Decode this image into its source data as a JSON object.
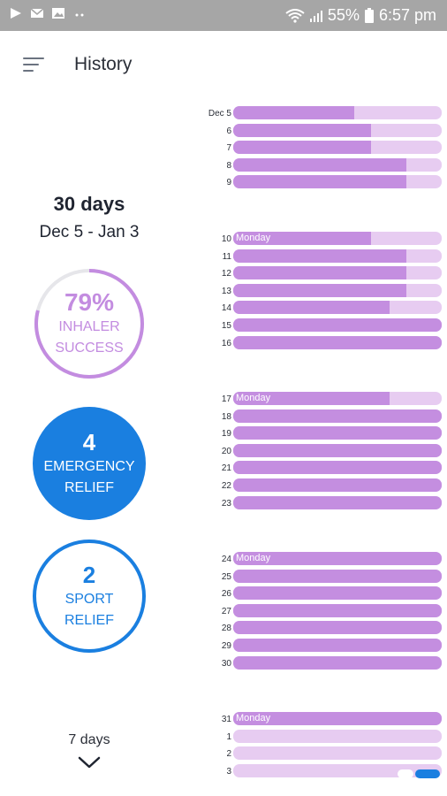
{
  "status": {
    "battery": "55%",
    "time": "6:57 pm"
  },
  "header": {
    "title": "History"
  },
  "summary": {
    "days_title": "30 days",
    "date_range": "Dec 5 - Jan 3",
    "inhaler": {
      "value": "79%",
      "line1": "INHALER",
      "line2": "SUCCESS",
      "fraction": 0.79
    },
    "emergency": {
      "value": "4",
      "line1": "EMERGENCY",
      "line2": "RELIEF"
    },
    "sport": {
      "value": "2",
      "line1": "SPORT",
      "line2": "RELIEF"
    },
    "more_label": "7 days"
  },
  "colors": {
    "fill": "#c48ee0",
    "track": "#e7ccf1",
    "accent": "#1a7fe0"
  },
  "history": [
    {
      "label": "Dec 5",
      "fill": 0.58
    },
    {
      "label": "6",
      "fill": 0.66
    },
    {
      "label": "7",
      "fill": 0.66
    },
    {
      "label": "8",
      "fill": 0.83
    },
    {
      "label": "9",
      "fill": 0.83
    },
    {
      "label": "10",
      "fill": 0.66,
      "tag": "Monday"
    },
    {
      "label": "11",
      "fill": 0.83
    },
    {
      "label": "12",
      "fill": 0.83
    },
    {
      "label": "13",
      "fill": 0.83
    },
    {
      "label": "14",
      "fill": 0.75
    },
    {
      "label": "15",
      "fill": 1.0
    },
    {
      "label": "16",
      "fill": 1.0
    },
    {
      "label": "17",
      "fill": 0.75,
      "tag": "Monday"
    },
    {
      "label": "18",
      "fill": 1.0
    },
    {
      "label": "19",
      "fill": 1.0
    },
    {
      "label": "20",
      "fill": 1.0
    },
    {
      "label": "21",
      "fill": 1.0
    },
    {
      "label": "22",
      "fill": 1.0
    },
    {
      "label": "23",
      "fill": 1.0
    },
    {
      "label": "24",
      "fill": 1.0,
      "tag": "Monday"
    },
    {
      "label": "25",
      "fill": 1.0
    },
    {
      "label": "26",
      "fill": 1.0
    },
    {
      "label": "27",
      "fill": 1.0
    },
    {
      "label": "28",
      "fill": 1.0
    },
    {
      "label": "29",
      "fill": 1.0
    },
    {
      "label": "30",
      "fill": 1.0
    },
    {
      "label": "31",
      "fill": 1.0,
      "tag": "Monday"
    },
    {
      "label": "1",
      "fill": 0
    },
    {
      "label": "2",
      "fill": 0
    },
    {
      "label": "3",
      "fill": 0
    }
  ]
}
